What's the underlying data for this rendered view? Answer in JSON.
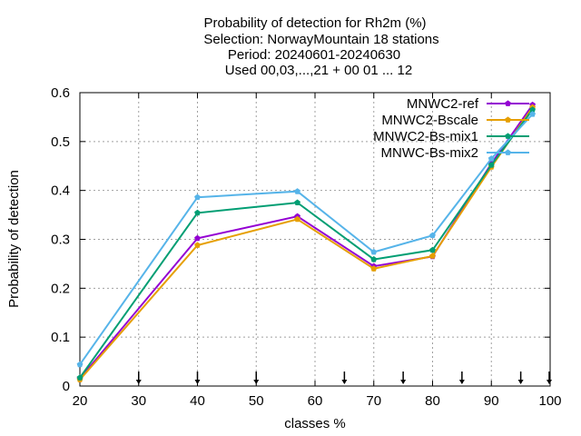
{
  "chart_data": {
    "type": "line",
    "title_lines": [
      "Probability of detection  for Rh2m (%)",
      "Selection: NorwayMountain     18 stations",
      "Period: 20240601-20240630",
      "Used 00,03,...,21 + 00 01 ... 12"
    ],
    "xlabel": "classes %",
    "ylabel": "Probability of detection",
    "xlim": [
      20,
      100
    ],
    "ylim": [
      0,
      0.6
    ],
    "xticks": [
      20,
      30,
      40,
      50,
      60,
      70,
      80,
      90,
      100
    ],
    "yticks": [
      0,
      0.1,
      0.2,
      0.3,
      0.4,
      0.5,
      0.6
    ],
    "xtick_labels": [
      "20",
      "30",
      "40",
      "50",
      "60",
      "70",
      "80",
      "90",
      "100"
    ],
    "ytick_labels": [
      "0",
      "0.1",
      "0.2",
      "0.3",
      "0.4",
      "0.5",
      "0.6"
    ],
    "grid": true,
    "legend_position": "top-right",
    "class_markers": [
      30,
      40,
      50,
      65,
      75,
      85,
      95,
      100
    ],
    "series": [
      {
        "name": "MNWC2-ref",
        "color": "#9400d3",
        "x": [
          20,
          40,
          57,
          70,
          80,
          90,
          97
        ],
        "y": [
          0.015,
          0.302,
          0.347,
          0.245,
          0.265,
          0.455,
          0.575
        ]
      },
      {
        "name": "MNWC2-Bscale",
        "color": "#e69f00",
        "x": [
          20,
          40,
          57,
          70,
          80,
          90,
          97
        ],
        "y": [
          0.013,
          0.288,
          0.341,
          0.24,
          0.266,
          0.448,
          0.57
        ]
      },
      {
        "name": "MNWC2-Bs-mix1",
        "color": "#009e73",
        "x": [
          20,
          40,
          57,
          70,
          80,
          90,
          97
        ],
        "y": [
          0.017,
          0.354,
          0.375,
          0.259,
          0.278,
          0.452,
          0.565
        ]
      },
      {
        "name": "MNWC-Bs-mix2",
        "color": "#56b4e9",
        "x": [
          20,
          40,
          57,
          70,
          80,
          90,
          97
        ],
        "y": [
          0.044,
          0.386,
          0.398,
          0.274,
          0.308,
          0.465,
          0.556
        ]
      }
    ]
  }
}
